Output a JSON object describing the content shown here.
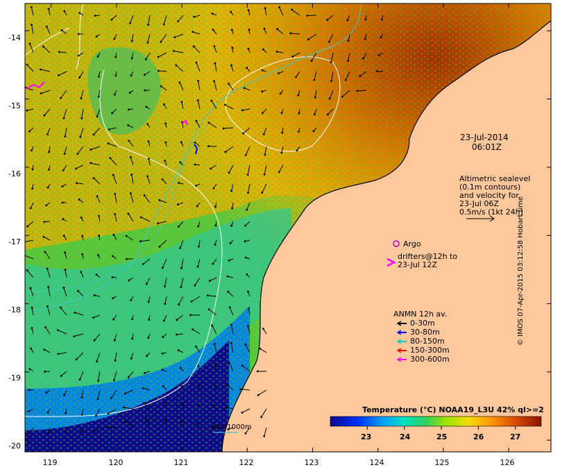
{
  "map": {
    "lat_ticks": [
      "-14",
      "-15",
      "-16",
      "-17",
      "-18",
      "-19",
      "-20"
    ],
    "lon_ticks": [
      "119",
      "120",
      "121",
      "122",
      "123",
      "124",
      "125",
      "126"
    ],
    "date_line1": "23-Jul-2014",
    "date_line2": "06:01Z",
    "altimetry_lines": [
      "Altimetric sealevel",
      "(0.1m contours)",
      "and velocity for",
      "23-Jul 06Z",
      "0.5m/s (1kt 24h)"
    ],
    "argo_label": "Argo",
    "drifters_line1": "drifters@12h to",
    "drifters_line2": "23-Jul 12Z",
    "anmn_title": "ANMN 12h av.",
    "anmn_items": [
      {
        "label": "0-30m",
        "color": "#000000"
      },
      {
        "label": "30-80m",
        "color": "#0000ff"
      },
      {
        "label": "80-150m",
        "color": "#00cccc"
      },
      {
        "label": "150-300m",
        "color": "#ff0000"
      },
      {
        "label": "300-600m",
        "color": "#ff00ff"
      }
    ],
    "depth_scale_label": "200  1000m",
    "colorbar_title": "Temperature (°C) NOAA19_L3U 42% ql>=2",
    "colorbar_ticks": [
      "23",
      "24",
      "25",
      "26",
      "27"
    ],
    "colorbar_range": [
      22,
      27.7
    ],
    "credit": "© IMOS 07-Apr-2015 03:12:58 Hobart time",
    "colors": {
      "land": "#fcc89c",
      "argo": "#cc00cc",
      "drifter": "#ff00ff",
      "contour": "#ffffff",
      "isobath": "#40c8c8"
    }
  }
}
